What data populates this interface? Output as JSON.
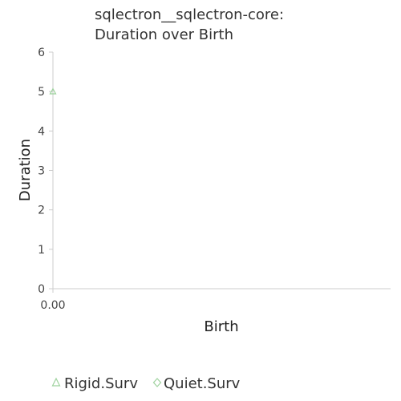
{
  "chart_data": {
    "type": "scatter",
    "title": [
      "sqlectron__sqlectron-core:",
      "Duration over Birth"
    ],
    "xlabel": "Birth",
    "ylabel": "Duration",
    "xlim": [
      0,
      1
    ],
    "ylim": [
      0,
      6
    ],
    "x_ticks": [
      "0.00"
    ],
    "y_ticks": [
      "0",
      "1",
      "2",
      "3",
      "4",
      "5",
      "6"
    ],
    "grid": false,
    "legend_position": "bottom",
    "series": [
      {
        "name": "Rigid.Surv",
        "marker": "triangle",
        "color": "#9ed29e",
        "points": [
          {
            "x": 0.0,
            "y": 5.0
          }
        ]
      },
      {
        "name": "Quiet.Surv",
        "marker": "diamond",
        "color": "#9ed29e",
        "points": []
      }
    ]
  }
}
